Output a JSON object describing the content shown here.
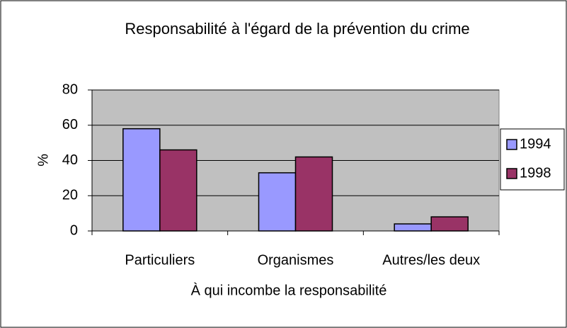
{
  "chart_data": {
    "type": "bar",
    "title": "Responsabilité à l'égard de la prévention du crime",
    "x_label": "À qui incombe la responsabilité",
    "y_label": "%",
    "categories": [
      "Particuliers",
      "Organismes",
      "Autres/les deux"
    ],
    "series": [
      {
        "name": "1994",
        "color": "#9999ff",
        "values": [
          58,
          33,
          4
        ]
      },
      {
        "name": "1998",
        "color": "#993366",
        "values": [
          46,
          42,
          8
        ]
      }
    ],
    "ylim": [
      0,
      80
    ],
    "yticks": [
      0,
      20,
      40,
      60,
      80
    ],
    "grid": true,
    "legend": "right",
    "plot_background": "#c0c0c0"
  }
}
